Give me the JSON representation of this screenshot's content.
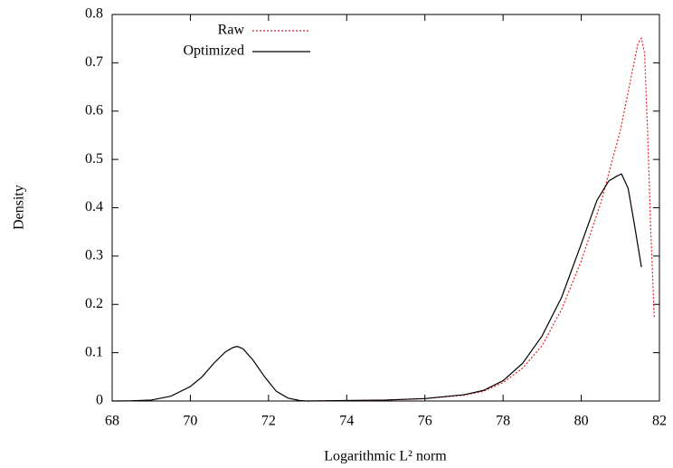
{
  "chart_data": {
    "type": "line",
    "xlabel": "Logarithmic L² norm",
    "ylabel": "Density",
    "xlim": [
      68,
      82
    ],
    "xticks": [
      68,
      70,
      72,
      74,
      76,
      78,
      80,
      82
    ],
    "ylim": [
      0,
      0.8
    ],
    "yticks": [
      0,
      0.1,
      0.2,
      0.3,
      0.4,
      0.5,
      0.6,
      0.7,
      0.8
    ],
    "legend": "top-left",
    "series": [
      {
        "name": "Raw",
        "color": "#e8202a",
        "dash": "dotted",
        "x": [
          73,
          74,
          75,
          76,
          77,
          77.5,
          78,
          78.5,
          79,
          79.5,
          80,
          80.5,
          81,
          81.3,
          81.45,
          81.54,
          81.62,
          81.7,
          81.78,
          81.87
        ],
        "values": [
          0,
          0.001,
          0.002,
          0.005,
          0.012,
          0.02,
          0.038,
          0.068,
          0.115,
          0.19,
          0.29,
          0.41,
          0.56,
          0.68,
          0.74,
          0.751,
          0.72,
          0.55,
          0.35,
          0.17
        ]
      },
      {
        "name": "Optimized",
        "color": "#000000",
        "dash": "solid",
        "x": [
          68,
          68.5,
          69,
          69.5,
          70,
          70.3,
          70.6,
          70.9,
          71.1,
          71.2,
          71.35,
          71.6,
          71.9,
          72.2,
          72.5,
          72.8,
          73,
          74,
          75,
          76,
          77,
          77.5,
          78,
          78.5,
          79,
          79.5,
          80,
          80.4,
          80.7,
          80.9,
          81.03,
          81.2,
          81.35,
          81.54
        ],
        "values": [
          0,
          0.0005,
          0.002,
          0.01,
          0.03,
          0.05,
          0.078,
          0.102,
          0.111,
          0.113,
          0.108,
          0.085,
          0.05,
          0.02,
          0.006,
          0.001,
          0,
          0.001,
          0.002,
          0.005,
          0.013,
          0.022,
          0.042,
          0.078,
          0.135,
          0.215,
          0.325,
          0.415,
          0.455,
          0.465,
          0.47,
          0.44,
          0.37,
          0.277
        ]
      }
    ]
  }
}
